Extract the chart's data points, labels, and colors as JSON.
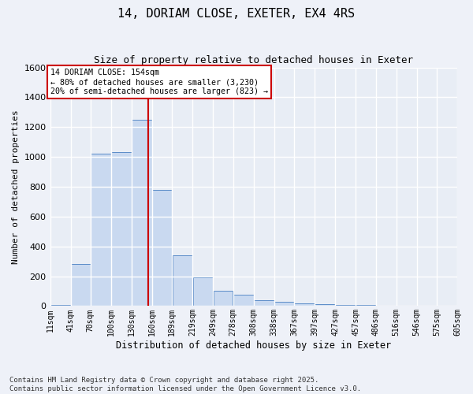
{
  "title_line1": "14, DORIAM CLOSE, EXETER, EX4 4RS",
  "title_line2": "Size of property relative to detached houses in Exeter",
  "xlabel": "Distribution of detached houses by size in Exeter",
  "ylabel": "Number of detached properties",
  "bar_color": "#c9d9f0",
  "bar_edge_color": "#5b8cc8",
  "background_color": "#e8edf5",
  "grid_color": "#ffffff",
  "bins": [
    11,
    41,
    70,
    100,
    130,
    160,
    189,
    219,
    249,
    278,
    308,
    338,
    367,
    397,
    427,
    457,
    486,
    516,
    546,
    575,
    605
  ],
  "bin_labels": [
    "11sqm",
    "41sqm",
    "70sqm",
    "100sqm",
    "130sqm",
    "160sqm",
    "189sqm",
    "219sqm",
    "249sqm",
    "278sqm",
    "308sqm",
    "338sqm",
    "367sqm",
    "397sqm",
    "427sqm",
    "457sqm",
    "486sqm",
    "516sqm",
    "546sqm",
    "575sqm",
    "605sqm"
  ],
  "counts": [
    5,
    280,
    1020,
    1030,
    1250,
    780,
    340,
    195,
    100,
    75,
    40,
    30,
    20,
    15,
    5,
    5,
    3,
    2,
    1,
    1
  ],
  "property_size": 154,
  "vline_color": "#cc0000",
  "annotation_text": "14 DORIAM CLOSE: 154sqm\n← 80% of detached houses are smaller (3,230)\n20% of semi-detached houses are larger (823) →",
  "annotation_box_color": "#cc0000",
  "ylim": [
    0,
    1600
  ],
  "yticks": [
    0,
    200,
    400,
    600,
    800,
    1000,
    1200,
    1400,
    1600
  ],
  "footer_line1": "Contains HM Land Registry data © Crown copyright and database right 2025.",
  "footer_line2": "Contains public sector information licensed under the Open Government Licence v3.0.",
  "fig_facecolor": "#eef1f8"
}
